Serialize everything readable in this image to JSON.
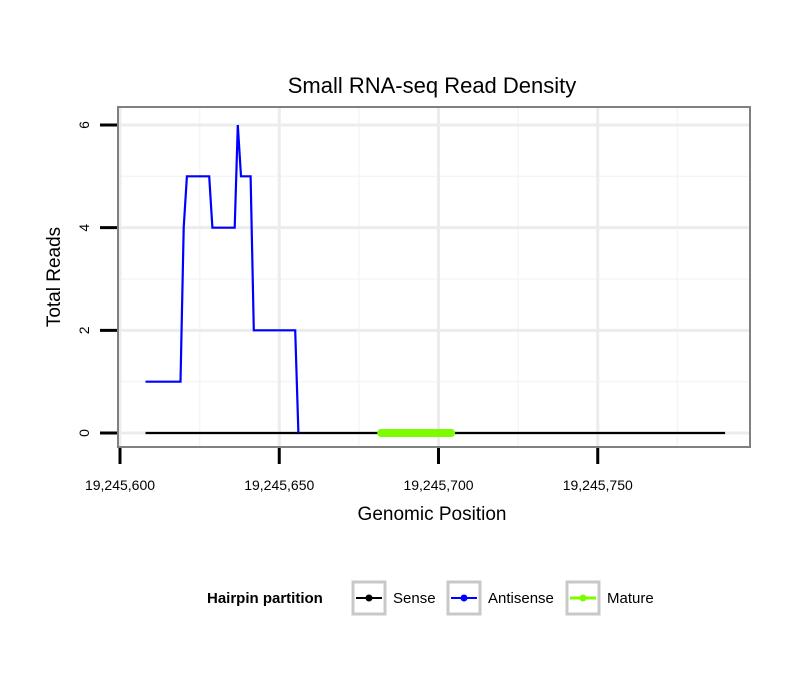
{
  "chart_data": {
    "type": "line",
    "title": "Small RNA-seq Read Density",
    "xlabel": "Genomic Position",
    "ylabel": "Total Reads",
    "xlim": [
      19245600,
      19245800
    ],
    "ylim": [
      -0.3,
      6.3
    ],
    "x_ticks": [
      19245600,
      19245650,
      19245700,
      19245750
    ],
    "x_tick_labels": [
      "19,245,600",
      "19,245,650",
      "19,245,700",
      "19,245,750"
    ],
    "y_ticks": [
      0,
      2,
      4,
      6
    ],
    "y_tick_labels": [
      "0",
      "2",
      "4",
      "6"
    ],
    "grid": true,
    "legend": {
      "title": "Hairpin partition",
      "position": "bottom"
    },
    "series": [
      {
        "name": "Sense",
        "color": "#000000",
        "x": [
          19245608,
          19245790
        ],
        "y": [
          0,
          0
        ]
      },
      {
        "name": "Antisense",
        "color": "#0000ff",
        "x": [
          19245608,
          19245619,
          19245620,
          19245621,
          19245628,
          19245629,
          19245636,
          19245637,
          19245638,
          19245641,
          19245642,
          19245655,
          19245656
        ],
        "y": [
          1,
          1,
          4,
          5,
          5,
          4,
          4,
          6,
          5,
          5,
          2,
          2,
          0
        ]
      },
      {
        "name": "Mature",
        "color": "#7cfc00",
        "x": [
          19245682,
          19245704
        ],
        "y": [
          0,
          0
        ]
      }
    ]
  }
}
